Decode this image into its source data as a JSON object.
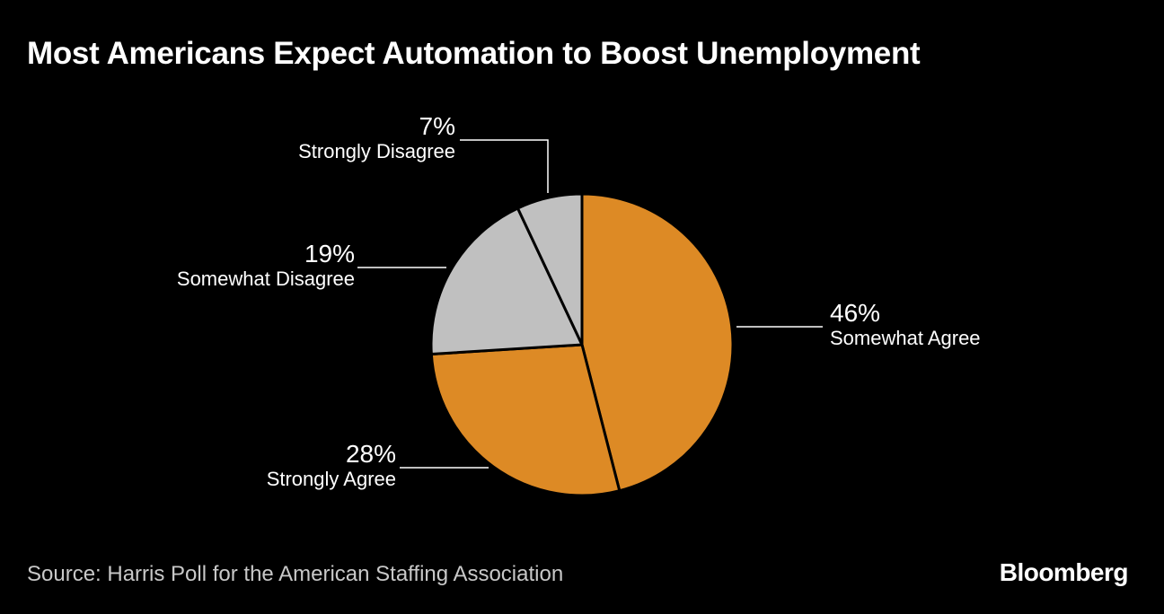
{
  "chart_data": {
    "type": "pie",
    "title": "Most Americans Expect Automation to Boost Unemployment",
    "slices": [
      {
        "label": "Somewhat Agree",
        "value": 46,
        "value_label": "46%",
        "color": "#DD8A25"
      },
      {
        "label": "Strongly Agree",
        "value": 28,
        "value_label": "28%",
        "color": "#DD8A25"
      },
      {
        "label": "Somewhat Disagree",
        "value": 19,
        "value_label": "19%",
        "color": "#C0C0C0"
      },
      {
        "label": "Strongly Disagree",
        "value": 7,
        "value_label": "7%",
        "color": "#C0C0C0"
      }
    ],
    "start": "12 o'clock, clockwise",
    "legend": "none (direct labels)"
  },
  "source": "Source: Harris Poll for the American Staffing Association",
  "logo": "Bloomberg"
}
